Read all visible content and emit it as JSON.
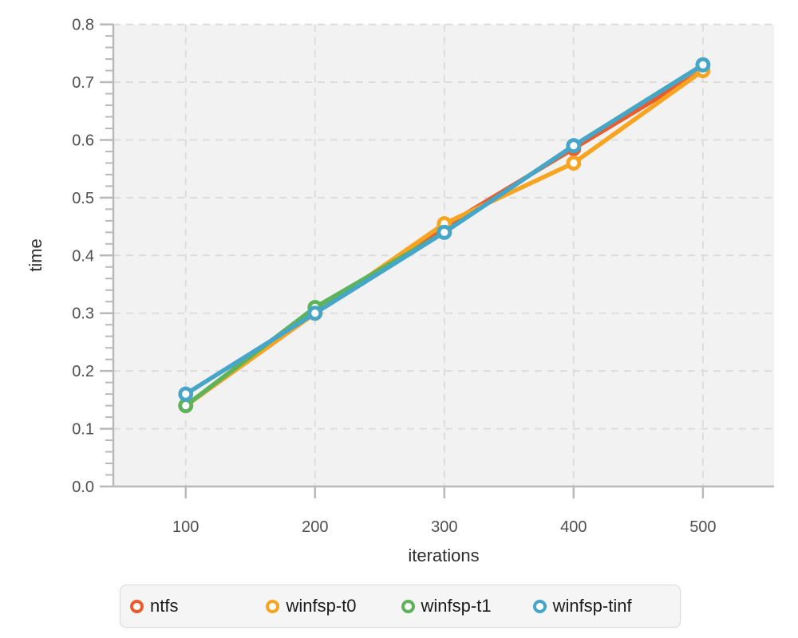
{
  "figure": {
    "background": "#ffffff",
    "plot_background": "#f2f2f2",
    "gridline_color": "#dcdcdc",
    "axis_color": "#b9b9b9",
    "tick_label_color": "#4f4f4f",
    "axis_title_color": "#2d2d2d",
    "legend_background": "#f5f5f6",
    "legend_border": "#d9d9d9"
  },
  "chart_data": {
    "type": "line",
    "title": "",
    "xlabel": "iterations",
    "ylabel": "time",
    "x": [
      100,
      200,
      300,
      400,
      500
    ],
    "x_ticks": [
      "100",
      "200",
      "300",
      "400",
      "500"
    ],
    "y_ticks": [
      "0.0",
      "0.1",
      "0.2",
      "0.3",
      "0.4",
      "0.5",
      "0.6",
      "0.7",
      "0.8"
    ],
    "xlim": [
      44,
      555
    ],
    "ylim": [
      0,
      0.8
    ],
    "y_minor_step": 0.02,
    "grid": "dashed",
    "legend_position": "bottom",
    "marker": "open-circle",
    "series": [
      {
        "name": "ntfs",
        "color": "#e85c30",
        "values": [
          0.14,
          0.3,
          0.45,
          0.585,
          0.72
        ]
      },
      {
        "name": "winfsp-t0",
        "color": "#f7a521",
        "values": [
          0.14,
          0.3,
          0.455,
          0.56,
          0.72
        ]
      },
      {
        "name": "winfsp-t1",
        "color": "#5cb35a",
        "values": [
          0.14,
          0.31,
          0.44,
          0.59,
          0.73
        ]
      },
      {
        "name": "winfsp-tinf",
        "color": "#45a6c9",
        "values": [
          0.16,
          0.3,
          0.44,
          0.59,
          0.73
        ]
      }
    ]
  }
}
